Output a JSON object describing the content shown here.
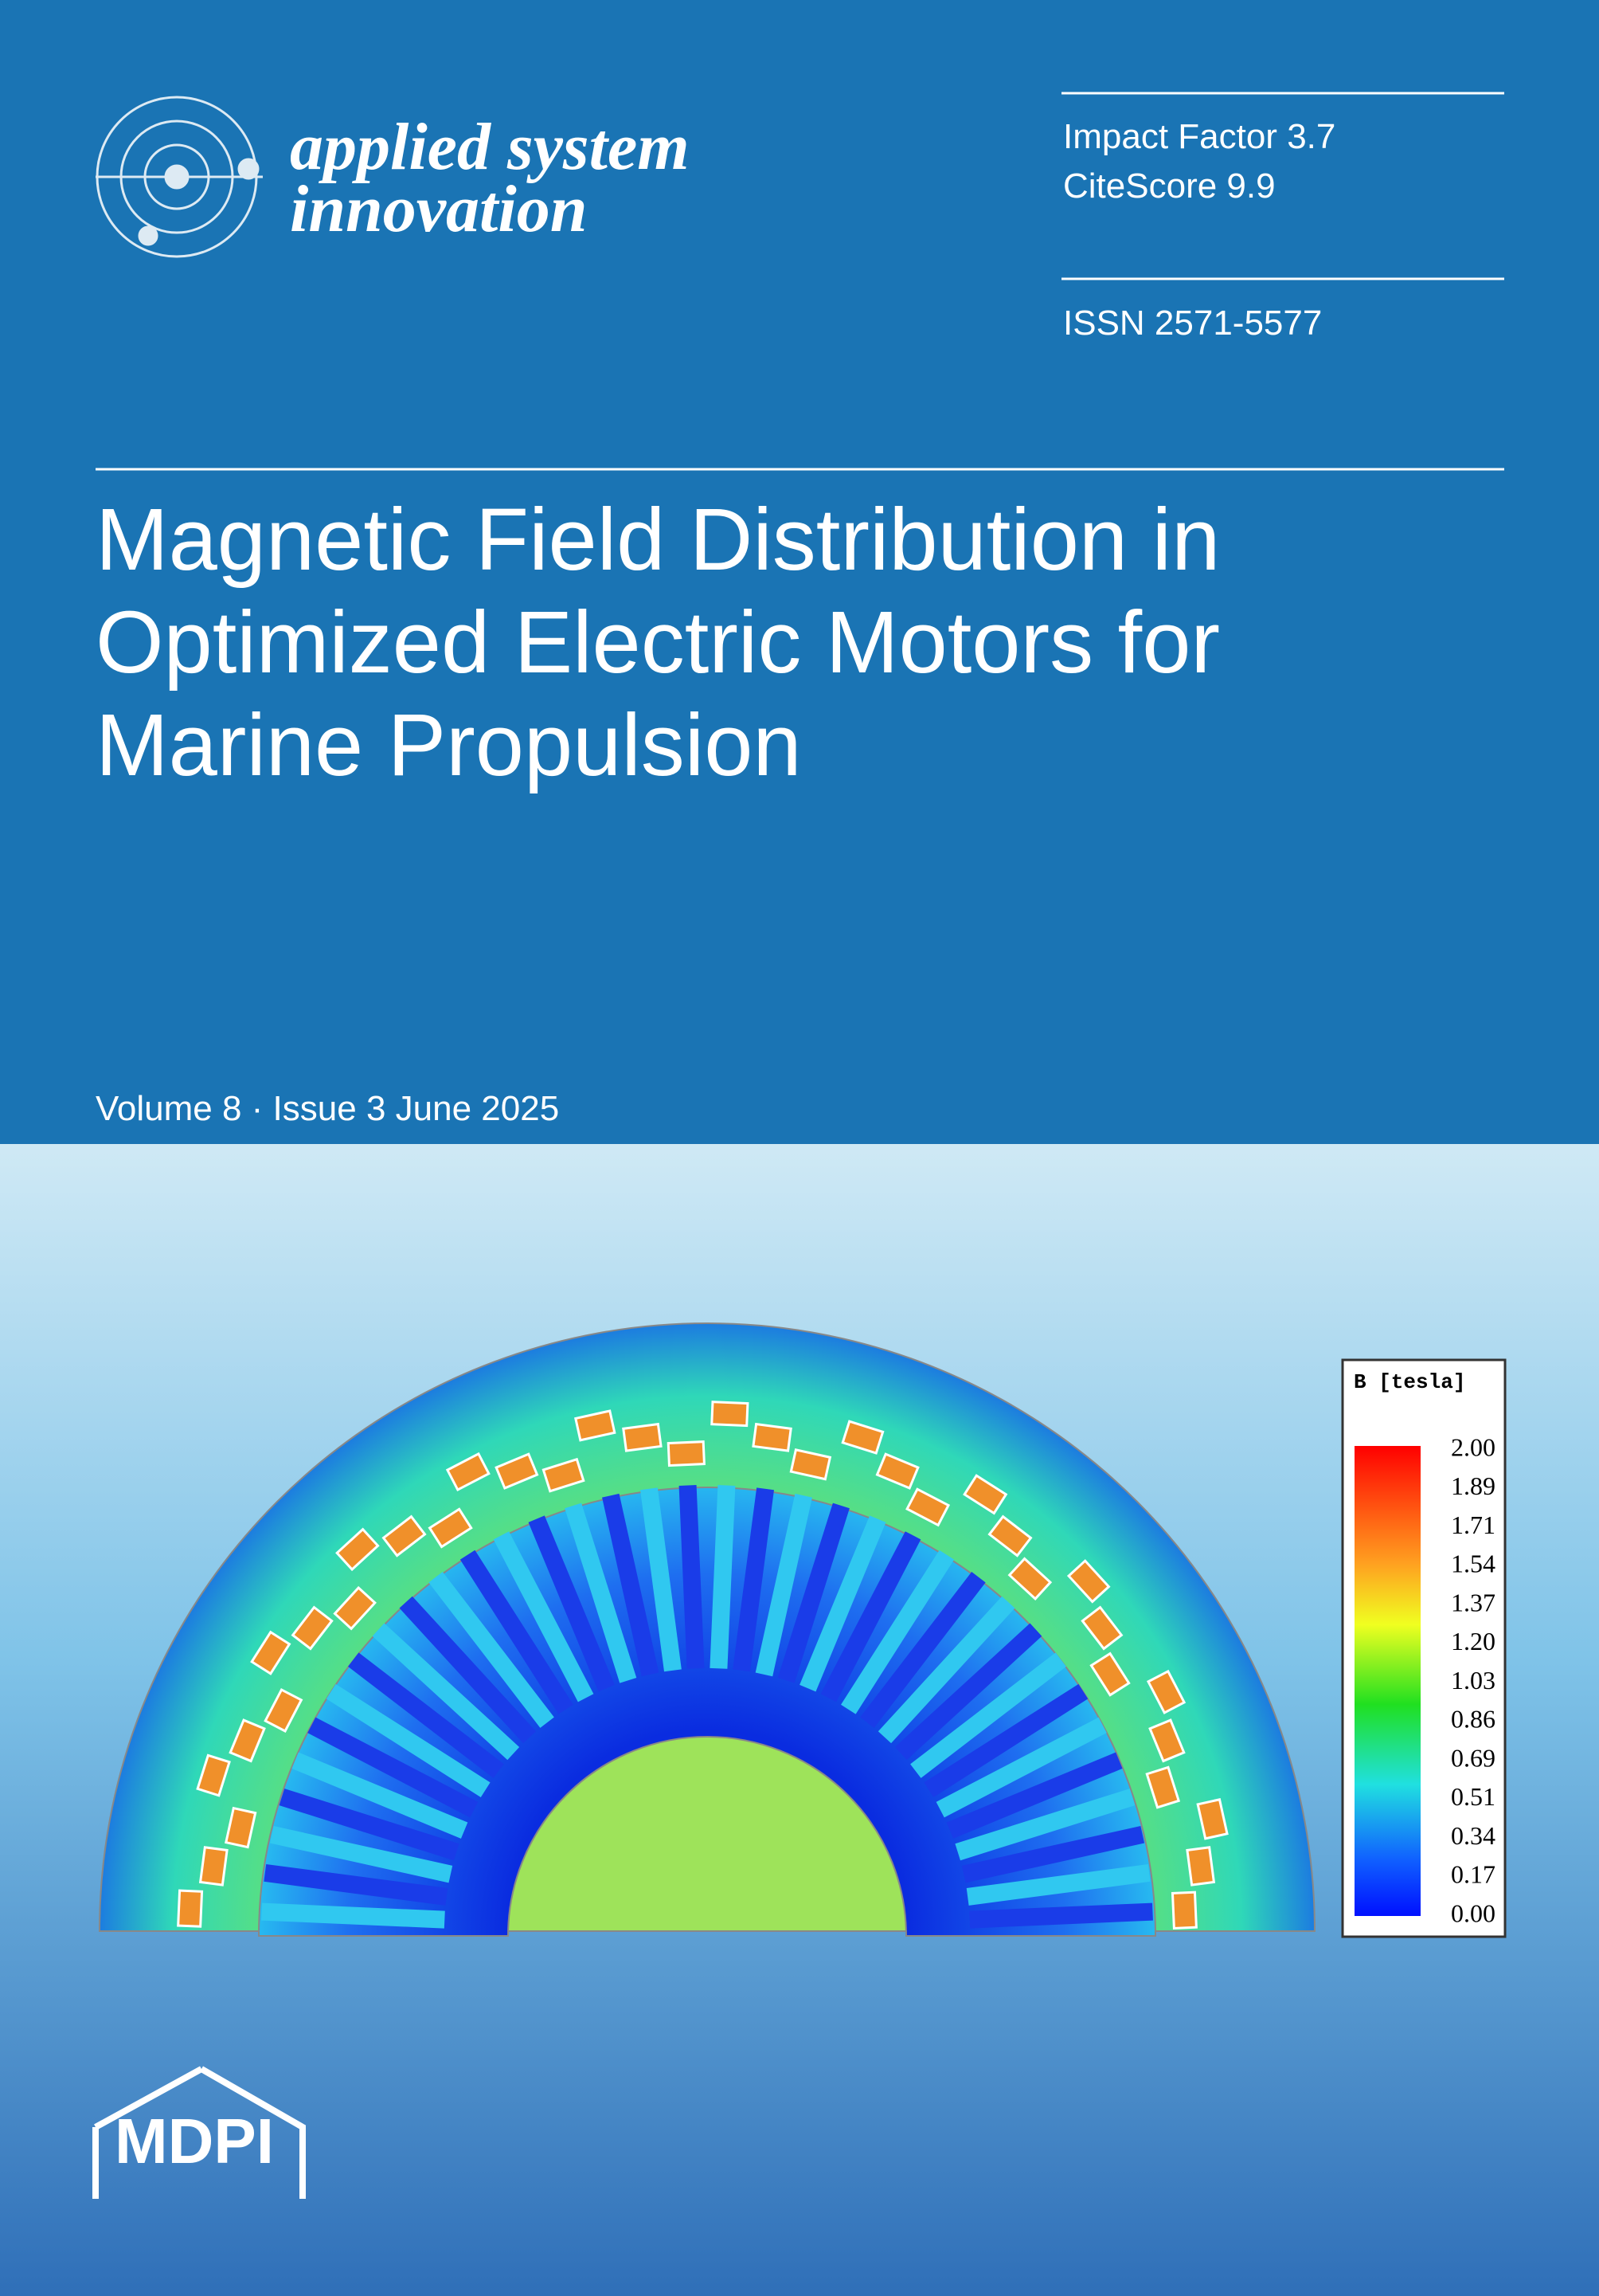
{
  "journal": {
    "name_line1": "applied system",
    "name_line2": "innovation"
  },
  "metrics": {
    "impact_factor": "Impact Factor 3.7",
    "citescore": "CiteScore 9.9",
    "issn": "ISSN 2571-5577"
  },
  "title": {
    "lines": [
      "Magnetic Field Distribution in",
      "Optimized Electric Motors for",
      "Marine Propulsion"
    ]
  },
  "issue": "Volume 8 · Issue 3 June 2025",
  "figure": {
    "legend_title": "B [tesla]",
    "legend_labels": [
      "2.00",
      "1.89",
      "1.71",
      "1.54",
      "1.37",
      "1.20",
      "1.03",
      "0.86",
      "0.69",
      "0.51",
      "0.34",
      "0.17",
      "0.00"
    ]
  },
  "publisher": "MDPI"
}
